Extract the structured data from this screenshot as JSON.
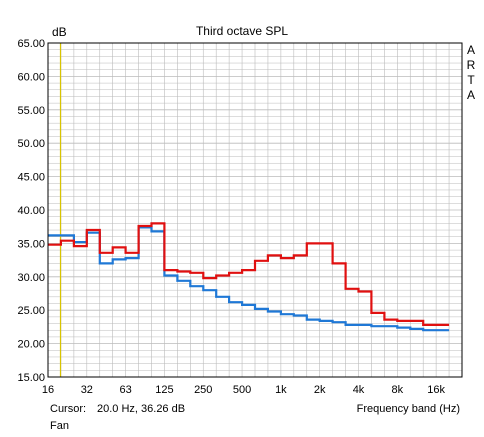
{
  "chart_data": {
    "type": "line",
    "step": true,
    "title": "Third octave SPL",
    "ylabel": "dB",
    "xlabel": "Frequency band (Hz)",
    "ylim": [
      15,
      65
    ],
    "xscale": "log",
    "y_ticks": [
      "65.00",
      "60.00",
      "55.00",
      "50.00",
      "45.00",
      "40.00",
      "35.00",
      "30.00",
      "25.00",
      "20.00",
      "15.00"
    ],
    "x_ticks": [
      "16",
      "32",
      "63",
      "125",
      "250",
      "500",
      "1k",
      "2k",
      "4k",
      "8k",
      "16k"
    ],
    "grid": true,
    "bands": [
      "16",
      "20",
      "25",
      "31.5",
      "40",
      "50",
      "63",
      "80",
      "100",
      "125",
      "160",
      "200",
      "250",
      "315",
      "400",
      "500",
      "630",
      "800",
      "1k",
      "1.25k",
      "1.6k",
      "2k",
      "2.5k",
      "3.15k",
      "4k",
      "5k",
      "6.3k",
      "8k",
      "10k",
      "12.5k",
      "16k"
    ],
    "series": [
      {
        "color": "#e01010",
        "values": [
          34.8,
          35.4,
          34.6,
          37.0,
          33.6,
          34.4,
          33.6,
          37.6,
          38.0,
          31.0,
          30.8,
          30.6,
          29.8,
          30.2,
          30.6,
          31.0,
          32.4,
          33.2,
          32.8,
          33.2,
          35.0,
          35.0,
          32.0,
          28.2,
          27.8,
          24.6,
          23.6,
          23.4,
          23.4,
          22.8,
          22.8
        ]
      },
      {
        "color": "#1f78d6",
        "values": [
          36.2,
          36.2,
          35.2,
          36.6,
          32.0,
          32.6,
          32.8,
          37.4,
          36.8,
          30.2,
          29.4,
          28.6,
          28.0,
          27.0,
          26.2,
          25.8,
          25.2,
          24.8,
          24.4,
          24.2,
          23.6,
          23.4,
          23.2,
          22.8,
          22.8,
          22.6,
          22.6,
          22.4,
          22.2,
          22.0,
          22.0
        ]
      }
    ],
    "cursor_x_hz": 20.0
  },
  "cursor": {
    "label": "Cursor:",
    "value": "20.0 Hz, 36.26 dB"
  },
  "footer": "Fan",
  "watermark": "ARTA",
  "colors": {
    "cursor_line": "#d8c400",
    "grid": "#bbbbbb"
  }
}
